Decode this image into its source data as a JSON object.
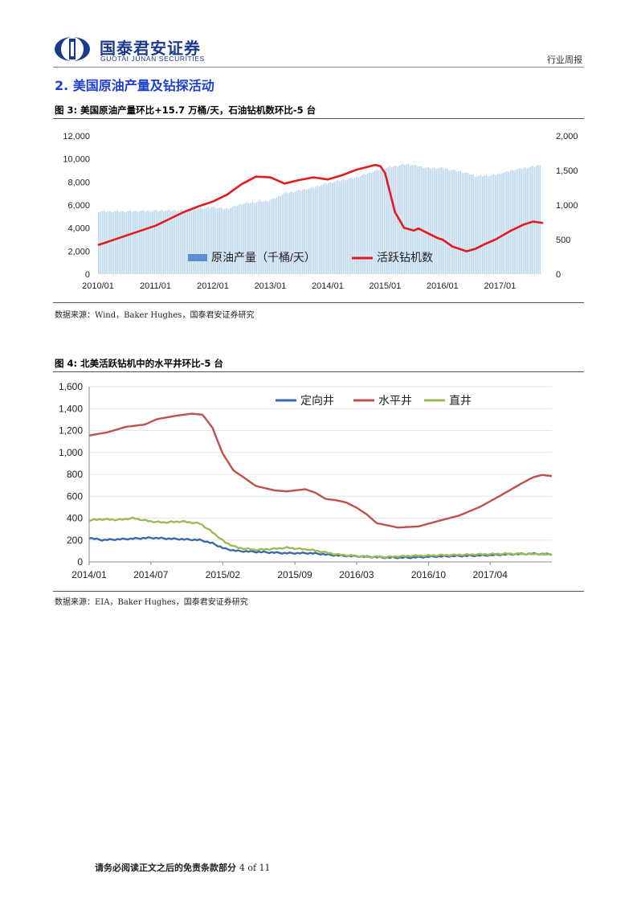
{
  "header": {
    "brand_cn": "国泰君安证券",
    "brand_en": "GUOTAI JUNAN SECURITIES",
    "report_type": "行业周报",
    "logo_color": "#1a3a8a"
  },
  "section": {
    "title": "2.  美国原油产量及钻探活动"
  },
  "figure3": {
    "title": "图 3:  美国原油产量环比+15.7 万桶/天，石油钻机数环比-5 台",
    "source": "数据来源：Wind，Baker Hughes，国泰君安证券研究",
    "chart_data": {
      "type": "bar+line",
      "x_ticks": [
        "2010/01",
        "2011/01",
        "2012/01",
        "2013/01",
        "2014/01",
        "2015/01",
        "2016/01",
        "2017/01"
      ],
      "y_left_ticks": [
        "0",
        "2,000",
        "4,000",
        "6,000",
        "8,000",
        "10,000",
        "12,000"
      ],
      "y_right_ticks": [
        "0",
        "500",
        "1,000",
        "1,500",
        "2,000"
      ],
      "ylim_left": [
        0,
        12000
      ],
      "ylim_right": [
        0,
        2000
      ],
      "series": [
        {
          "name": "原油产量（千桶/天）",
          "kind": "bar",
          "axis": "left",
          "color": "#bdd7ee",
          "legend_color": "#5b8fd4",
          "points": [
            [
              2010.0,
              5450
            ],
            [
              2010.5,
              5450
            ],
            [
              2011.0,
              5500
            ],
            [
              2011.5,
              5550
            ],
            [
              2012.0,
              5800
            ],
            [
              2012.25,
              5650
            ],
            [
              2012.5,
              6100
            ],
            [
              2013.0,
              6400
            ],
            [
              2013.25,
              7000
            ],
            [
              2013.75,
              7500
            ],
            [
              2014.0,
              7900
            ],
            [
              2014.5,
              8400
            ],
            [
              2014.92,
              9100
            ],
            [
              2015.2,
              9400
            ],
            [
              2015.4,
              9550
            ],
            [
              2015.75,
              9200
            ],
            [
              2016.0,
              9200
            ],
            [
              2016.4,
              8800
            ],
            [
              2016.6,
              8500
            ],
            [
              2016.9,
              8600
            ],
            [
              2017.3,
              9100
            ],
            [
              2017.6,
              9350
            ],
            [
              2017.7,
              9500
            ]
          ]
        },
        {
          "name": "活跃钻机数",
          "kind": "line",
          "axis": "right",
          "color": "#e41a1c",
          "points": [
            [
              2010.0,
              420
            ],
            [
              2010.5,
              560
            ],
            [
              2011.0,
              700
            ],
            [
              2011.3,
              820
            ],
            [
              2011.5,
              900
            ],
            [
              2011.75,
              980
            ],
            [
              2012.0,
              1050
            ],
            [
              2012.25,
              1150
            ],
            [
              2012.5,
              1300
            ],
            [
              2012.75,
              1410
            ],
            [
              2013.0,
              1400
            ],
            [
              2013.25,
              1310
            ],
            [
              2013.5,
              1360
            ],
            [
              2013.75,
              1400
            ],
            [
              2014.0,
              1370
            ],
            [
              2014.25,
              1430
            ],
            [
              2014.5,
              1510
            ],
            [
              2014.83,
              1580
            ],
            [
              2014.92,
              1560
            ],
            [
              2015.0,
              1460
            ],
            [
              2015.08,
              1200
            ],
            [
              2015.17,
              900
            ],
            [
              2015.33,
              670
            ],
            [
              2015.5,
              630
            ],
            [
              2015.58,
              660
            ],
            [
              2015.75,
              590
            ],
            [
              2015.92,
              520
            ],
            [
              2016.0,
              500
            ],
            [
              2016.17,
              400
            ],
            [
              2016.42,
              330
            ],
            [
              2016.58,
              370
            ],
            [
              2016.75,
              440
            ],
            [
              2016.92,
              500
            ],
            [
              2017.17,
              620
            ],
            [
              2017.42,
              720
            ],
            [
              2017.58,
              760
            ],
            [
              2017.75,
              740
            ]
          ]
        }
      ],
      "legend_position": "bottom-center"
    }
  },
  "figure4": {
    "title": "图 4:  北美活跃钻机中的水平井环比-5 台",
    "source": "数据来源：EIA，Baker Hughes，国泰君安证券研究",
    "chart_data": {
      "type": "line",
      "x_ticks": [
        "2014/01",
        "2014/07",
        "2015/02",
        "2015/09",
        "2016/03",
        "2016/10",
        "2017/04"
      ],
      "y_ticks": [
        "0",
        "200",
        "400",
        "600",
        "800",
        "1,000",
        "1,200",
        "1,400",
        "1,600"
      ],
      "ylim": [
        0,
        1600
      ],
      "xlim": [
        2014.0,
        2017.75
      ],
      "series": [
        {
          "name": "定向井",
          "color": "#3b6aa8",
          "points": [
            [
              2014.0,
              220
            ],
            [
              2014.1,
              200
            ],
            [
              2014.3,
              210
            ],
            [
              2014.5,
              220
            ],
            [
              2014.7,
              210
            ],
            [
              2014.9,
              200
            ],
            [
              2015.0,
              170
            ],
            [
              2015.1,
              120
            ],
            [
              2015.2,
              100
            ],
            [
              2015.4,
              90
            ],
            [
              2015.6,
              80
            ],
            [
              2015.8,
              80
            ],
            [
              2016.0,
              60
            ],
            [
              2016.2,
              50
            ],
            [
              2016.4,
              40
            ],
            [
              2016.6,
              40
            ],
            [
              2016.8,
              50
            ],
            [
              2017.0,
              55
            ],
            [
              2017.2,
              60
            ],
            [
              2017.4,
              70
            ],
            [
              2017.6,
              75
            ],
            [
              2017.75,
              70
            ]
          ]
        },
        {
          "name": "水平井",
          "color": "#c0504d",
          "points": [
            [
              2014.0,
              1160
            ],
            [
              2014.15,
              1190
            ],
            [
              2014.3,
              1240
            ],
            [
              2014.45,
              1260
            ],
            [
              2014.55,
              1310
            ],
            [
              2014.7,
              1340
            ],
            [
              2014.83,
              1360
            ],
            [
              2014.92,
              1350
            ],
            [
              2015.0,
              1230
            ],
            [
              2015.08,
              1000
            ],
            [
              2015.17,
              840
            ],
            [
              2015.25,
              780
            ],
            [
              2015.35,
              700
            ],
            [
              2015.5,
              660
            ],
            [
              2015.6,
              650
            ],
            [
              2015.75,
              670
            ],
            [
              2015.83,
              640
            ],
            [
              2015.92,
              580
            ],
            [
              2016.0,
              570
            ],
            [
              2016.08,
              550
            ],
            [
              2016.17,
              500
            ],
            [
              2016.25,
              440
            ],
            [
              2016.33,
              360
            ],
            [
              2016.42,
              340
            ],
            [
              2016.5,
              320
            ],
            [
              2016.67,
              330
            ],
            [
              2016.83,
              380
            ],
            [
              2017.0,
              430
            ],
            [
              2017.17,
              510
            ],
            [
              2017.33,
              610
            ],
            [
              2017.5,
              720
            ],
            [
              2017.6,
              780
            ],
            [
              2017.67,
              800
            ],
            [
              2017.75,
              790
            ]
          ]
        },
        {
          "name": "直井",
          "color": "#9bbb59",
          "points": [
            [
              2014.0,
              380
            ],
            [
              2014.1,
              390
            ],
            [
              2014.25,
              385
            ],
            [
              2014.35,
              400
            ],
            [
              2014.5,
              370
            ],
            [
              2014.6,
              360
            ],
            [
              2014.75,
              370
            ],
            [
              2014.9,
              350
            ],
            [
              2015.0,
              270
            ],
            [
              2015.1,
              180
            ],
            [
              2015.2,
              130
            ],
            [
              2015.35,
              110
            ],
            [
              2015.5,
              120
            ],
            [
              2015.6,
              130
            ],
            [
              2015.8,
              110
            ],
            [
              2016.0,
              70
            ],
            [
              2016.2,
              50
            ],
            [
              2016.4,
              45
            ],
            [
              2016.6,
              55
            ],
            [
              2016.8,
              60
            ],
            [
              2017.0,
              65
            ],
            [
              2017.2,
              70
            ],
            [
              2017.4,
              75
            ],
            [
              2017.75,
              70
            ]
          ]
        }
      ],
      "legend_position": "top-right"
    }
  },
  "footer": {
    "disclaimer": "请务必阅读正文之后的免责条款部分",
    "page": "4 of 11"
  }
}
